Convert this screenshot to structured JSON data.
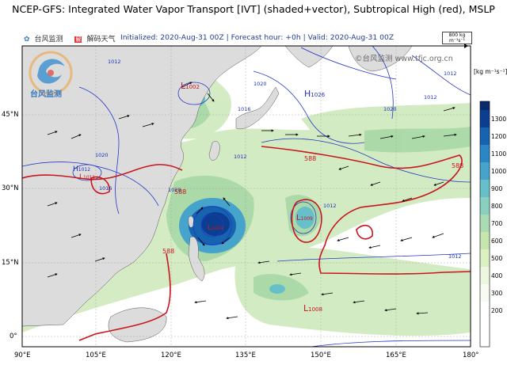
{
  "title": "NCEP-GFS: Integrated Water Vapor Transport [IVT] (shaded+vector), Subtropical High (red), MSLP",
  "logos": {
    "left_logo": "台风监测",
    "right_logo": "解码天气"
  },
  "run_info": {
    "initialized": "Initialized: 2020-Aug-31 00Z",
    "sep1": "|",
    "forecast": "Forecast hour: +0h",
    "sep2": "|",
    "valid": "Valid: 2020-Aug-31 00Z"
  },
  "vector_reference": {
    "label": "800 kg m⁻¹s⁻¹"
  },
  "watermark": "©台风监测 www.tfjc.org.cn",
  "brand_logo_text": "台风监测",
  "colorbar": {
    "unit": "[kg m⁻¹s⁻¹]",
    "ticks": [
      "1300",
      "1200",
      "1100",
      "1000",
      "900",
      "800",
      "700",
      "600",
      "500",
      "400",
      "300",
      "200"
    ],
    "colors": [
      "#0a2a6b",
      "#0b3d91",
      "#1663b0",
      "#2a86c5",
      "#45a3cc",
      "#66bfc9",
      "#8ad0c1",
      "#a9dcb3",
      "#c5e7ad",
      "#ddf0c4",
      "#edf7e0",
      "#f7fbf1",
      "#ffffff"
    ]
  },
  "axes": {
    "lon_labels": [
      "90°E",
      "105°E",
      "120°E",
      "135°E",
      "150°E",
      "165°E",
      "180°"
    ],
    "lat_labels": [
      "45°N",
      "30°N",
      "15°N",
      "0°"
    ]
  },
  "pressure_systems": [
    {
      "type": "L",
      "value": "1002"
    },
    {
      "type": "H",
      "value": "1026"
    },
    {
      "type": "L",
      "value": "1004"
    },
    {
      "type": "L",
      "value": "1009"
    },
    {
      "type": "L",
      "value": "1008"
    },
    {
      "type": "H",
      "value": "1012"
    },
    {
      "type": "L",
      "value": "1011"
    }
  ],
  "isobar_labels": [
    "1012",
    "1020",
    "1016",
    "1020",
    "1016",
    "1020",
    "1012",
    "1012",
    "1012",
    "1012",
    "1020",
    "1012"
  ],
  "subtropical_high_labels": [
    "588",
    "588",
    "588",
    "588"
  ]
}
